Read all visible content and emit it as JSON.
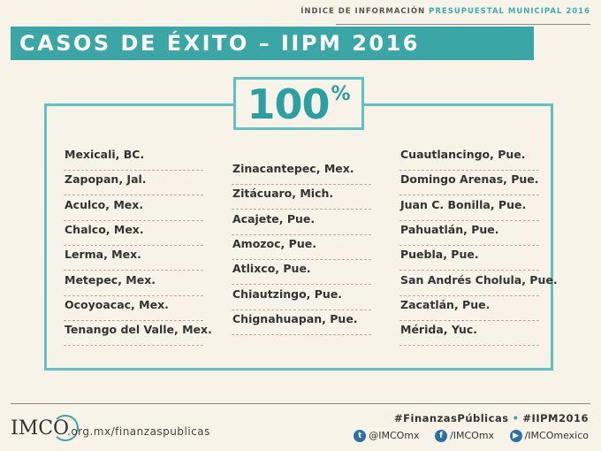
{
  "header": {
    "prefix": "ÍNDICE DE INFORMACIÓN",
    "accent": "PRESUPUESTAL MUNICIPAL 2016",
    "title": "CASOS DE ÉXITO – IIPM 2016"
  },
  "score": {
    "value": "100",
    "symbol": "%"
  },
  "columns": [
    [
      "Mexicali, BC.",
      "Zapopan, Jal.",
      "Aculco, Mex.",
      "Chalco, Mex.",
      "Lerma, Mex.",
      "Metepec, Mex.",
      "Ocoyoacac, Mex.",
      "Tenango del Valle, Mex."
    ],
    [
      "Zinacantepec, Mex.",
      "Zitácuaro, Mich.",
      "Acajete, Pue.",
      "Amozoc, Pue.",
      "Atlixco, Pue.",
      "Chiautzingo, Pue.",
      "Chignahuapan, Pue."
    ],
    [
      "Cuautlancingo, Pue.",
      "Domingo Arenas, Pue.",
      "Juan C. Bonilla, Pue.",
      "Pahuatlán, Pue.",
      "Puebla, Pue.",
      "San Andrés Cholula, Pue.",
      "Zacatlán, Pue.",
      "Mérida, Yuc."
    ]
  ],
  "footer": {
    "logo": "IMCO",
    "url": ".org.mx/finanzaspublicas",
    "tag1": "#FinanzasPúblicas",
    "tag2": "#IIPM2016",
    "twitter": "@IMCOmx",
    "facebook": "/IMCOmx",
    "youtube": "/IMCOmexico"
  },
  "colors": {
    "accent": "#3aa6a6",
    "frame": "#5ec2c2",
    "background": "#f8f3e8"
  }
}
